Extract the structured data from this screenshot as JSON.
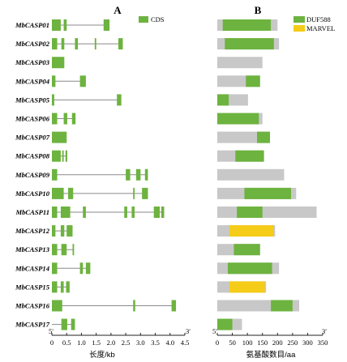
{
  "panels": {
    "a": "A",
    "b": "B"
  },
  "genes": [
    {
      "name": "MbCASP01",
      "exons": [
        [
          0,
          0.3
        ],
        [
          0.4,
          0.5
        ],
        [
          1.75,
          1.95
        ]
      ],
      "length": 1.95,
      "aa_total": 200,
      "domains": [
        {
          "type": "DUF588",
          "start": 18,
          "end": 178
        }
      ]
    },
    {
      "name": "MbCASP02",
      "exons": [
        [
          0,
          0.18
        ],
        [
          0.32,
          0.42
        ],
        [
          0.78,
          0.88
        ],
        [
          1.45,
          1.5
        ],
        [
          2.25,
          2.4
        ]
      ],
      "length": 2.4,
      "aa_total": 205,
      "domains": [
        {
          "type": "DUF588",
          "start": 25,
          "end": 188
        }
      ]
    },
    {
      "name": "MbCASP03",
      "exons": [
        [
          0,
          0.42
        ]
      ],
      "length": 0.42,
      "aa_total": 150,
      "domains": []
    },
    {
      "name": "MbCASP04",
      "exons": [
        [
          0,
          0.12
        ],
        [
          0.95,
          1.15
        ]
      ],
      "length": 1.15,
      "aa_total": 142,
      "domains": [
        {
          "type": "DUF588",
          "start": 95,
          "end": 142
        }
      ]
    },
    {
      "name": "MbCASP05",
      "exons": [
        [
          0,
          0.08
        ],
        [
          2.2,
          2.35
        ]
      ],
      "length": 2.35,
      "aa_total": 102,
      "domains": [
        {
          "type": "DUF588",
          "start": 0,
          "end": 38
        }
      ]
    },
    {
      "name": "MbCASP06",
      "exons": [
        [
          0,
          0.18
        ],
        [
          0.4,
          0.52
        ],
        [
          0.68,
          0.8
        ]
      ],
      "length": 0.8,
      "aa_total": 150,
      "domains": [
        {
          "type": "DUF588",
          "start": 0,
          "end": 138
        }
      ]
    },
    {
      "name": "MbCASP07",
      "exons": [
        [
          0,
          0.5
        ]
      ],
      "length": 0.5,
      "aa_total": 175,
      "domains": [
        {
          "type": "DUF588",
          "start": 132,
          "end": 175
        }
      ]
    },
    {
      "name": "MbCASP08",
      "exons": [
        [
          0,
          0.3
        ],
        [
          0.35,
          0.4
        ],
        [
          0.46,
          0.52
        ]
      ],
      "length": 0.52,
      "aa_total": 155,
      "domains": [
        {
          "type": "DUF588",
          "start": 60,
          "end": 155
        }
      ]
    },
    {
      "name": "MbCASP09",
      "exons": [
        [
          0,
          0.18
        ],
        [
          2.5,
          2.65
        ],
        [
          2.85,
          3
        ],
        [
          3.15,
          3.25
        ]
      ],
      "length": 3.25,
      "aa_total": 222,
      "domains": []
    },
    {
      "name": "MbCASP10",
      "exons": [
        [
          0,
          0.4
        ],
        [
          0.55,
          0.72
        ],
        [
          2.75,
          2.8
        ],
        [
          3.05,
          3.25
        ]
      ],
      "length": 3.25,
      "aa_total": 262,
      "domains": [
        {
          "type": "DUF588",
          "start": 90,
          "end": 245
        }
      ]
    },
    {
      "name": "MbCASP11",
      "exons": [
        [
          0,
          0.18
        ],
        [
          0.3,
          0.62
        ],
        [
          1.05,
          1.15
        ],
        [
          2.45,
          2.55
        ],
        [
          2.7,
          2.8
        ],
        [
          3.45,
          3.65
        ],
        [
          3.7,
          3.8
        ]
      ],
      "length": 3.8,
      "aa_total": 330,
      "domains": [
        {
          "type": "DUF588",
          "start": 65,
          "end": 150
        }
      ]
    },
    {
      "name": "MbCASP12",
      "exons": [
        [
          0,
          0.12
        ],
        [
          0.3,
          0.42
        ],
        [
          0.5,
          0.7
        ]
      ],
      "length": 0.7,
      "aa_total": 192,
      "domains": [
        {
          "type": "MARVEL",
          "start": 40,
          "end": 188
        }
      ]
    },
    {
      "name": "MbCASP13",
      "exons": [
        [
          0,
          0.18
        ],
        [
          0.32,
          0.5
        ],
        [
          0.7,
          0.75
        ]
      ],
      "length": 0.75,
      "aa_total": 142,
      "domains": [
        {
          "type": "DUF588",
          "start": 55,
          "end": 142
        }
      ]
    },
    {
      "name": "MbCASP14",
      "exons": [
        [
          0,
          0.18
        ],
        [
          0.95,
          1.05
        ],
        [
          1.15,
          1.3
        ]
      ],
      "length": 1.3,
      "aa_total": 205,
      "domains": [
        {
          "type": "DUF588",
          "start": 35,
          "end": 182
        }
      ]
    },
    {
      "name": "MbCASP15",
      "exons": [
        [
          0,
          0.18
        ],
        [
          0.3,
          0.4
        ],
        [
          0.48,
          0.6
        ]
      ],
      "length": 0.6,
      "aa_total": 162,
      "domains": [
        {
          "type": "MARVEL",
          "start": 40,
          "end": 158
        }
      ]
    },
    {
      "name": "MbCASP16",
      "exons": [
        [
          0,
          0.35
        ],
        [
          2.75,
          2.82
        ],
        [
          4.05,
          4.2
        ]
      ],
      "length": 4.2,
      "aa_total": 272,
      "domains": [
        {
          "type": "DUF588",
          "start": 178,
          "end": 250
        }
      ]
    },
    {
      "name": "MbCASP17",
      "exons": [
        [
          0.32,
          0.52
        ],
        [
          0.65,
          0.78
        ]
      ],
      "length": 0.78,
      "aa_total": 82,
      "domains": [
        {
          "type": "DUF588",
          "start": 0,
          "end": 50
        }
      ]
    }
  ],
  "axis_a": {
    "title": "长度/kb",
    "ticks": [
      "0",
      "0.5",
      "1.0",
      "1.5",
      "2.0",
      "2.5",
      "3.0",
      "3.5",
      "4.0",
      "4.5"
    ],
    "tick_values": [
      0,
      0.5,
      1,
      1.5,
      2,
      2.5,
      3,
      3.5,
      4,
      4.5
    ],
    "max": 4.5,
    "start_label": "5′",
    "end_label": "3′"
  },
  "axis_b": {
    "title": "氨基酸数目/aa",
    "ticks": [
      "0",
      "50",
      "100",
      "150",
      "200",
      "250",
      "300",
      "350"
    ],
    "tick_values": [
      0,
      50,
      100,
      150,
      200,
      250,
      300,
      350
    ],
    "max": 350,
    "start_label": "5′",
    "end_label": "3′"
  },
  "legend_a": {
    "cds": "CDS"
  },
  "legend_b": {
    "duf588": "DUF588",
    "marvel": "MARVEL"
  },
  "colors": {
    "exon": "#6db33f",
    "intron": "#8a8a8a",
    "protein": "#c8c8c8",
    "duf588": "#6db33f",
    "marvel": "#f5cc17",
    "axis": "#222222"
  }
}
